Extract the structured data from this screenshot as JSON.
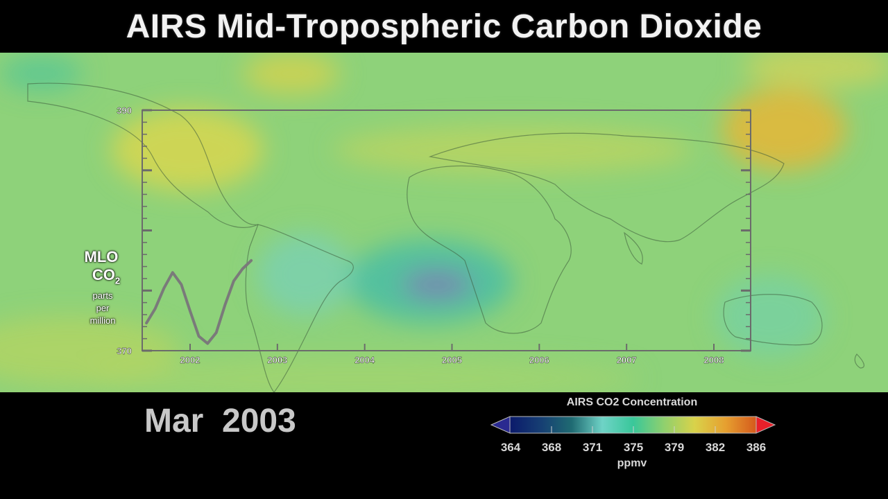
{
  "title": "AIRS Mid-Tropospheric Carbon Dioxide",
  "date_label": "Mar  2003",
  "chart_inset": {
    "y_axis_label_line1": "MLO",
    "y_axis_label_co": "CO",
    "y_axis_label_sub": "2",
    "y_axis_label_line3": "parts",
    "y_axis_label_line4": "per",
    "y_axis_label_line5": "million",
    "y_ticks": [
      "390",
      "370"
    ],
    "x_ticks": [
      "2002",
      "2003",
      "2004",
      "2005",
      "2006",
      "2007",
      "2008"
    ]
  },
  "chart_data": {
    "type": "line",
    "title": "",
    "xlabel": "",
    "ylabel": "MLO CO2 parts per million",
    "xlim": [
      2001.5,
      2008.5
    ],
    "ylim": [
      370,
      390
    ],
    "x": [
      2001.5,
      2001.6,
      2001.7,
      2001.8,
      2001.9,
      2002.0,
      2002.1,
      2002.2,
      2002.3,
      2002.4,
      2002.5,
      2002.6,
      2002.7
    ],
    "series": [
      {
        "values": [
          372.3,
          373.5,
          375.2,
          376.5,
          375.5,
          373.3,
          371.2,
          370.6,
          371.5,
          373.8,
          375.8,
          376.8,
          377.5
        ]
      }
    ]
  },
  "colorbar": {
    "title": "AIRS CO2 Concentration",
    "units": "ppmv",
    "ticks": [
      "364",
      "368",
      "371",
      "375",
      "379",
      "382",
      "386"
    ],
    "colors": [
      "#0b1a6b",
      "#163e73",
      "#1f6a72",
      "#6fd3c6",
      "#39c79a",
      "#8fd06e",
      "#d9d24a",
      "#e6a030",
      "#d55a1c"
    ],
    "under_color": "#2a2a90",
    "over_color": "#e8202a"
  },
  "colors": {
    "background": "#000000",
    "map_base": "#8ed27a",
    "title_text": "#f2f2f2"
  }
}
